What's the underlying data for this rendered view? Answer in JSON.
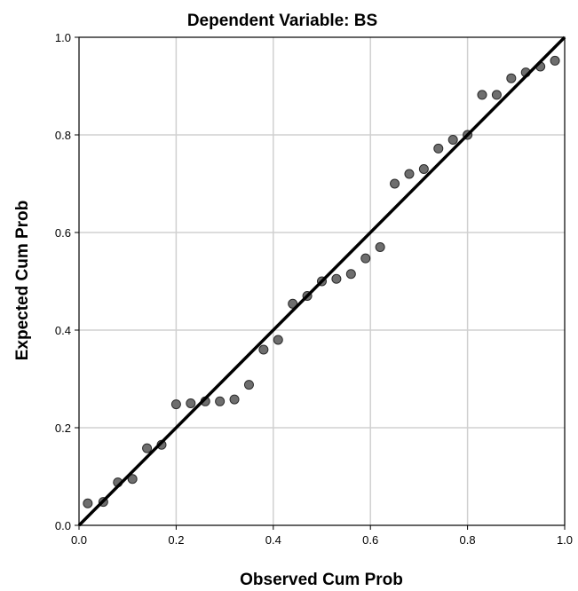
{
  "chart_data": {
    "type": "scatter",
    "title": "Dependent Variable: BS",
    "xlabel": "Observed Cum Prob",
    "ylabel": "Expected Cum Prob",
    "xlim": [
      0,
      1
    ],
    "ylim": [
      0,
      1
    ],
    "xticks": [
      "0.0",
      "0.2",
      "0.4",
      "0.6",
      "0.8",
      "1.0"
    ],
    "yticks": [
      "0.0",
      "0.2",
      "0.4",
      "0.6",
      "0.8",
      "1.0"
    ],
    "grid": true,
    "reference_line": [
      [
        0,
        0
      ],
      [
        1,
        1
      ]
    ],
    "colors": {
      "point_fill": "#6e6e6e",
      "point_stroke": "#2b2b2b",
      "line": "#000000",
      "grid": "#d0d0d0",
      "frame": "#000000"
    },
    "points": [
      [
        0.018,
        0.045
      ],
      [
        0.05,
        0.048
      ],
      [
        0.08,
        0.088
      ],
      [
        0.11,
        0.095
      ],
      [
        0.14,
        0.158
      ],
      [
        0.17,
        0.165
      ],
      [
        0.2,
        0.248
      ],
      [
        0.23,
        0.25
      ],
      [
        0.26,
        0.254
      ],
      [
        0.29,
        0.254
      ],
      [
        0.32,
        0.258
      ],
      [
        0.35,
        0.288
      ],
      [
        0.38,
        0.36
      ],
      [
        0.41,
        0.38
      ],
      [
        0.44,
        0.454
      ],
      [
        0.47,
        0.47
      ],
      [
        0.5,
        0.5
      ],
      [
        0.53,
        0.505
      ],
      [
        0.56,
        0.515
      ],
      [
        0.59,
        0.547
      ],
      [
        0.62,
        0.57
      ],
      [
        0.65,
        0.7
      ],
      [
        0.68,
        0.72
      ],
      [
        0.71,
        0.73
      ],
      [
        0.74,
        0.772
      ],
      [
        0.77,
        0.79
      ],
      [
        0.8,
        0.8
      ],
      [
        0.83,
        0.882
      ],
      [
        0.86,
        0.882
      ],
      [
        0.89,
        0.916
      ],
      [
        0.92,
        0.928
      ],
      [
        0.95,
        0.94
      ],
      [
        0.98,
        0.952
      ]
    ]
  }
}
